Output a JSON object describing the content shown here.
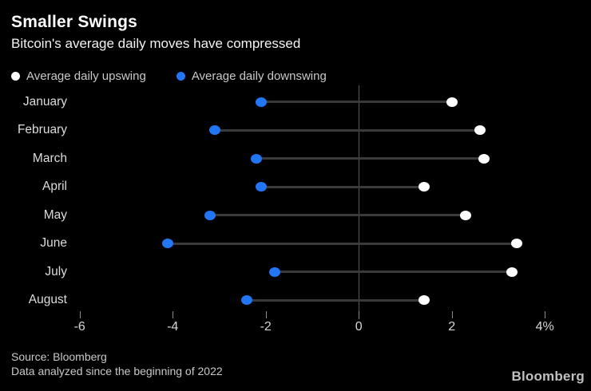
{
  "header": {
    "title": "Smaller Swings",
    "subtitle": "Bitcoin's average daily moves have compressed"
  },
  "legend": [
    {
      "name": "upswing",
      "label": "Average daily upswing",
      "color": "#ffffff"
    },
    {
      "name": "downswing",
      "label": "Average daily downswing",
      "color": "#2276f3"
    }
  ],
  "chart_data": {
    "type": "scatter",
    "variant": "dumbbell",
    "title": "Smaller Swings",
    "subtitle": "Bitcoin's average daily moves have compressed",
    "categories": [
      "January",
      "February",
      "March",
      "April",
      "May",
      "June",
      "July",
      "August"
    ],
    "series": [
      {
        "name": "Average daily upswing",
        "color": "#ffffff",
        "values": [
          2.0,
          2.6,
          2.7,
          1.4,
          2.3,
          3.4,
          3.3,
          1.4
        ]
      },
      {
        "name": "Average daily downswing",
        "color": "#2276f3",
        "values": [
          -2.1,
          -3.1,
          -2.2,
          -2.1,
          -3.2,
          -4.1,
          -1.8,
          -2.4
        ]
      }
    ],
    "unit": "%",
    "xlim": [
      -6.8,
      4.8
    ],
    "xticks": [
      {
        "value": -6,
        "label": "-6"
      },
      {
        "value": -4,
        "label": "-4"
      },
      {
        "value": -2,
        "label": "-2"
      },
      {
        "value": 0,
        "label": "0"
      },
      {
        "value": 2,
        "label": "2"
      },
      {
        "value": 4,
        "label": "4%"
      }
    ],
    "grid": "zero-line-only",
    "legend_position": "top-left",
    "connector_color": "#3a3a3a",
    "zero_line_color": "#5a5a5a"
  },
  "footer": {
    "source": "Source: Bloomberg",
    "note": "Data analyzed since the beginning of 2022",
    "brand": "Bloomberg"
  }
}
